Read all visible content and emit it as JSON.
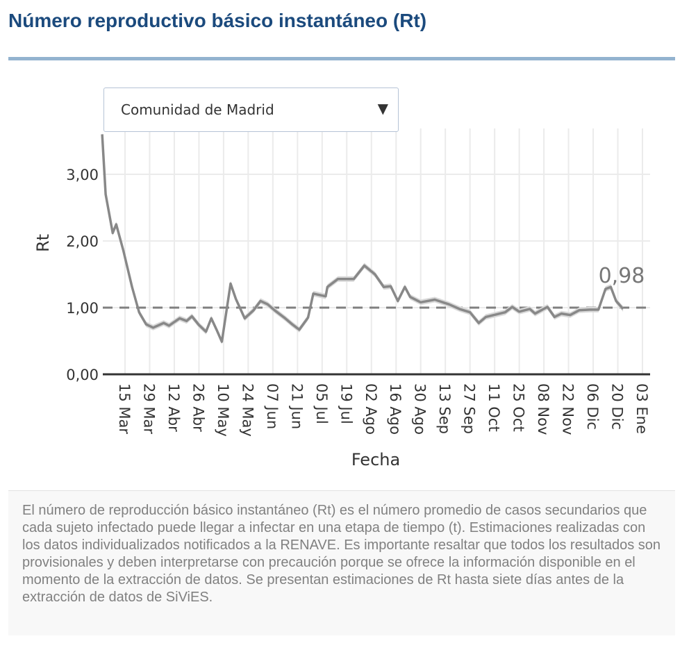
{
  "header": {
    "title": "Número reproductivo básico instantáneo (Rt)"
  },
  "dropdown": {
    "selected": "Comunidad de Madrid",
    "arrow_icon": "triangle-down-icon"
  },
  "chart_data": {
    "type": "line",
    "xlabel": "Fecha",
    "ylabel": "Rt",
    "ylim": [
      0,
      3.7
    ],
    "yticks": [
      {
        "v": 0,
        "label": "0,00"
      },
      {
        "v": 1,
        "label": "1,00"
      },
      {
        "v": 2,
        "label": "2,00"
      },
      {
        "v": 3,
        "label": "3,00"
      }
    ],
    "xticks": [
      {
        "d": "2020-03-15",
        "label": "15 Mar"
      },
      {
        "d": "2020-03-29",
        "label": "29 Mar"
      },
      {
        "d": "2020-04-12",
        "label": "12 Abr"
      },
      {
        "d": "2020-04-26",
        "label": "26 Abr"
      },
      {
        "d": "2020-05-10",
        "label": "10 May"
      },
      {
        "d": "2020-05-24",
        "label": "24 May"
      },
      {
        "d": "2020-06-07",
        "label": "07 Jun"
      },
      {
        "d": "2020-06-21",
        "label": "21 Jun"
      },
      {
        "d": "2020-07-05",
        "label": "05 Jul"
      },
      {
        "d": "2020-07-19",
        "label": "19 Jul"
      },
      {
        "d": "2020-08-02",
        "label": "02 Ago"
      },
      {
        "d": "2020-08-16",
        "label": "16 Ago"
      },
      {
        "d": "2020-08-30",
        "label": "30 Ago"
      },
      {
        "d": "2020-09-13",
        "label": "13 Sep"
      },
      {
        "d": "2020-09-27",
        "label": "27 Sep"
      },
      {
        "d": "2020-10-11",
        "label": "11 Oct"
      },
      {
        "d": "2020-10-25",
        "label": "25 Oct"
      },
      {
        "d": "2020-11-08",
        "label": "08 Nov"
      },
      {
        "d": "2020-11-22",
        "label": "22 Nov"
      },
      {
        "d": "2020-12-06",
        "label": "06 Dic"
      },
      {
        "d": "2020-12-20",
        "label": "20 Dic"
      },
      {
        "d": "2021-01-03",
        "label": "03 Ene"
      }
    ],
    "xlim": [
      "2020-03-02",
      "2021-01-05"
    ],
    "reference_line": 1.0,
    "grid": true,
    "last_value_label": "0,98",
    "colors": {
      "line": "#888888",
      "reference": "#808080",
      "grid": "#ebebeb"
    },
    "series": [
      {
        "x": [
          "2020-03-02",
          "2020-03-04",
          "2020-03-08",
          "2020-03-10",
          "2020-03-14",
          "2020-03-19",
          "2020-03-23",
          "2020-03-27",
          "2020-03-31",
          "2020-04-06",
          "2020-04-09",
          "2020-04-15",
          "2020-04-19",
          "2020-04-22",
          "2020-04-26",
          "2020-04-30",
          "2020-05-03",
          "2020-05-06",
          "2020-05-09",
          "2020-05-14",
          "2020-05-17",
          "2020-05-22",
          "2020-05-27",
          "2020-05-31",
          "2020-06-04",
          "2020-06-08",
          "2020-06-14",
          "2020-06-18",
          "2020-06-22",
          "2020-06-27",
          "2020-06-30",
          "2020-07-07",
          "2020-07-08",
          "2020-07-14",
          "2020-07-23",
          "2020-07-29",
          "2020-08-04",
          "2020-08-09",
          "2020-08-13",
          "2020-08-17",
          "2020-08-21",
          "2020-08-24",
          "2020-08-30",
          "2020-09-07",
          "2020-09-15",
          "2020-09-21",
          "2020-09-27",
          "2020-10-02",
          "2020-10-06",
          "2020-10-17",
          "2020-10-21",
          "2020-10-25",
          "2020-10-31",
          "2020-11-03",
          "2020-11-10",
          "2020-11-14",
          "2020-11-18",
          "2020-11-23",
          "2020-11-28",
          "2020-12-04",
          "2020-12-09",
          "2020-12-13",
          "2020-12-16",
          "2020-12-19",
          "2020-12-23"
        ],
        "y": [
          3.6,
          2.7,
          2.12,
          2.25,
          1.86,
          1.31,
          0.93,
          0.75,
          0.7,
          0.77,
          0.73,
          0.84,
          0.8,
          0.87,
          0.74,
          0.64,
          0.84,
          0.67,
          0.49,
          1.36,
          1.13,
          0.84,
          0.96,
          1.1,
          1.05,
          0.96,
          0.84,
          0.75,
          0.67,
          0.85,
          1.21,
          1.17,
          1.31,
          1.43,
          1.43,
          1.63,
          1.5,
          1.31,
          1.32,
          1.1,
          1.31,
          1.16,
          1.08,
          1.12,
          1.05,
          0.98,
          0.93,
          0.77,
          0.86,
          0.93,
          1.01,
          0.94,
          0.98,
          0.91,
          1.01,
          0.86,
          0.91,
          0.89,
          0.96,
          0.97,
          0.97,
          1.28,
          1.31,
          1.1,
          0.98
        ]
      }
    ]
  },
  "note": {
    "text": "El número de reproducción básico instantáneo (Rt) es el número promedio de casos secundarios que cada sujeto infectado puede llegar a infectar en una etapa de tiempo (t). Estimaciones realizadas con los datos individualizados notificados a la RENAVE. Es importante resaltar que todos los resultados son provisionales y deben interpretarse con precaución porque se ofrece la información disponible en el momento de la extracción de datos. Se presentan estimaciones de Rt hasta siete días antes de la extracción de datos de SiViES."
  }
}
